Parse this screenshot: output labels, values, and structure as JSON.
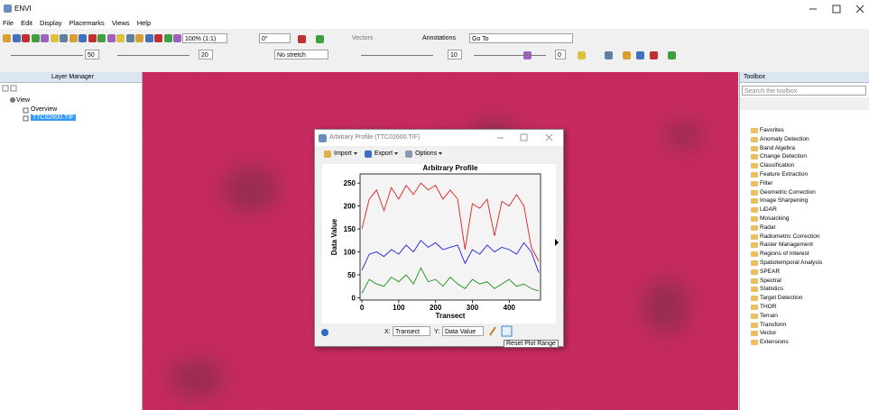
{
  "window": {
    "title": "ENVI"
  },
  "menu": [
    "File",
    "Edit",
    "Display",
    "Placemarks",
    "Views",
    "Help"
  ],
  "toolbar": {
    "zoom": "100% (1:1)",
    "rotation": "0°",
    "vectors": "Vectors",
    "annotations": "Annotations",
    "goto": "Go To",
    "brightness": "50",
    "contrast": "20",
    "stretch": "No stretch",
    "sharpen": "10",
    "transparency": "0"
  },
  "layer_manager": {
    "title": "Layer Manager",
    "view": "View",
    "overview": "Overview",
    "layer": "TTC02600.TIF"
  },
  "toolbox": {
    "title": "Toolbox",
    "search_placeholder": "Search the toolbox",
    "items": [
      "Favorites",
      "Anomaly Detection",
      "Band Algebra",
      "Change Detection",
      "Classification",
      "Feature Extraction",
      "Filter",
      "Geometric Correction",
      "Image Sharpening",
      "LiDAR",
      "Mosaicking",
      "Radar",
      "Radiometric Correction",
      "Raster Management",
      "Regions of Interest",
      "Spatiotemporal Analysis",
      "SPEAR",
      "Spectral",
      "Statistics",
      "Target Detection",
      "THOR",
      "Terrain",
      "Transform",
      "Vector",
      "Extensions"
    ]
  },
  "profile_dialog": {
    "title": "Arbitrary Profile (TTC02600.TIF)",
    "menu": [
      "Import",
      "Export",
      "Options"
    ],
    "x_label": "X:",
    "x_select": "Transect",
    "y_label": "Y:",
    "y_select": "Data Value",
    "tooltip": "Reset Plot Range"
  },
  "chart_data": {
    "type": "line",
    "title": "Arbitrary Profile",
    "x_label": "Transect",
    "y_label": "Data Value",
    "x": [
      0,
      20,
      40,
      60,
      80,
      100,
      120,
      140,
      160,
      180,
      200,
      220,
      240,
      260,
      280,
      300,
      320,
      340,
      360,
      380,
      400,
      420,
      440,
      460,
      480
    ],
    "series": [
      {
        "color": "#e02020",
        "values": [
          150,
          215,
          235,
          190,
          240,
          215,
          245,
          225,
          250,
          235,
          245,
          215,
          235,
          215,
          105,
          205,
          195,
          215,
          135,
          210,
          200,
          225,
          200,
          110,
          80
        ]
      },
      {
        "color": "#2020e0",
        "values": [
          60,
          95,
          100,
          90,
          105,
          95,
          115,
          100,
          125,
          110,
          120,
          105,
          110,
          115,
          75,
          105,
          95,
          115,
          100,
          110,
          105,
          95,
          120,
          100,
          55
        ]
      },
      {
        "color": "#189018",
        "values": [
          10,
          40,
          30,
          25,
          45,
          35,
          50,
          30,
          65,
          35,
          40,
          25,
          45,
          30,
          20,
          40,
          30,
          35,
          20,
          30,
          40,
          25,
          30,
          20,
          15
        ]
      }
    ],
    "xlim": [
      -5,
      485
    ],
    "ylim": [
      -5,
      270
    ],
    "xticks": [
      0,
      100,
      200,
      300,
      400
    ],
    "yticks": [
      0,
      50,
      100,
      150,
      200,
      250
    ]
  }
}
